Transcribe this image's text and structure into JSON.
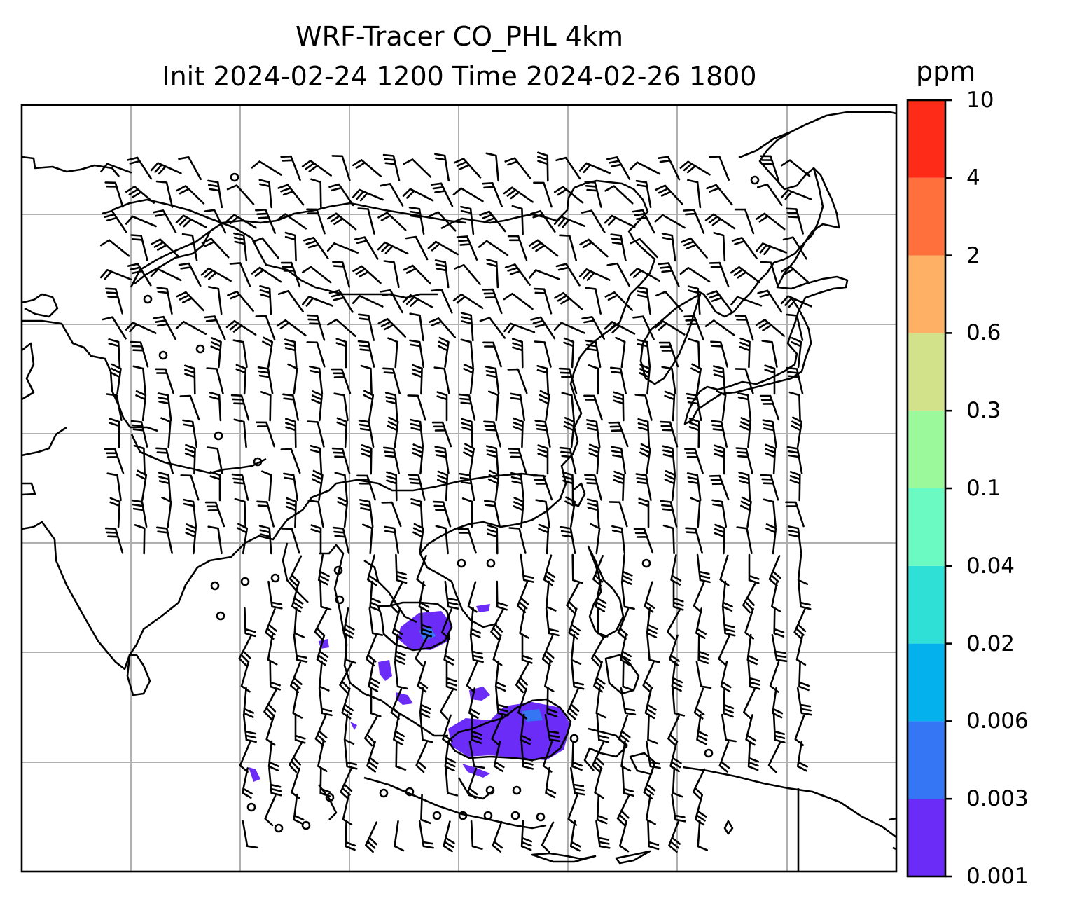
{
  "title": {
    "line1": "WRF-Tracer CO_PHL 4km",
    "line2": "Init 2024-02-24 1200 Time 2024-02-26 1800"
  },
  "colorbar": {
    "unit": "ppm",
    "levels": [
      "0.001",
      "0.003",
      "0.006",
      "0.02",
      "0.04",
      "0.1",
      "0.3",
      "0.6",
      "2",
      "4",
      "10"
    ],
    "colors": [
      "#6a2cf6",
      "#3476f3",
      "#05b1ec",
      "#2fe0d6",
      "#6cfac3",
      "#9cf99b",
      "#d2e28a",
      "#feb065",
      "#ff703d",
      "#fe2b18"
    ]
  },
  "map": {
    "gridlines": true,
    "barb_color": "#000000",
    "coastline_color": "#000000",
    "plume_color": "#6a2cf6"
  }
}
